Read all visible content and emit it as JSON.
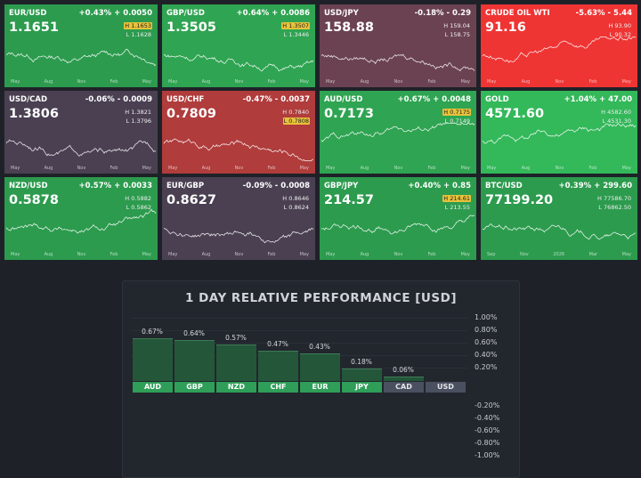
{
  "tiles": [
    {
      "symbol": "EUR/USD",
      "change": "+0.43% + 0.0050",
      "price": "1.1651",
      "high": "H 1.1653",
      "low": "L 1.1628",
      "hl_badge": true,
      "color": "#2c9b4e",
      "trend": 0.06,
      "axis": [
        "May",
        "Aug",
        "Nov",
        "Feb",
        "May"
      ]
    },
    {
      "symbol": "GBP/USD",
      "change": "+0.64% + 0.0086",
      "price": "1.3505",
      "high": "H 1.3507",
      "low": "L 1.3446",
      "hl_badge": true,
      "color": "#2fa452",
      "trend": 0.04,
      "axis": [
        "May",
        "Aug",
        "Nov",
        "Feb",
        "May"
      ]
    },
    {
      "symbol": "USD/JPY",
      "change": "-0.18% - 0.29",
      "price": "158.88",
      "high": "H 159.04",
      "low": "L 158.75",
      "hl_badge": false,
      "color": "#6b4252",
      "trend": 0.35,
      "axis": [
        "May",
        "Aug",
        "Nov",
        "Feb",
        "May"
      ]
    },
    {
      "symbol": "CRUDE OIL WTI",
      "change": "-5.63% - 5.44",
      "price": "91.16",
      "high": "H 93.90",
      "low": "L 90.32",
      "hl_badge": false,
      "color": "#ef3434",
      "trend": 0.55,
      "axis": [
        "May",
        "Aug",
        "Nov",
        "Feb",
        "May"
      ]
    },
    {
      "symbol": "USD/CAD",
      "change": "-0.06% - 0.0009",
      "price": "1.3806",
      "high": "H 1.3821",
      "low": "L 1.3796",
      "hl_badge": false,
      "color": "#4a4052",
      "trend": -0.3,
      "axis": [
        "May",
        "Aug",
        "Nov",
        "Feb",
        "May"
      ]
    },
    {
      "symbol": "USD/CHF",
      "change": "-0.47% - 0.0037",
      "price": "0.7809",
      "high": "H 0.7840",
      "low": "L 0.7808",
      "hl_badge": false,
      "lo_badge": true,
      "color": "#b03c3c",
      "trend": -0.4,
      "axis": [
        "May",
        "Aug",
        "Nov",
        "Feb",
        "May"
      ]
    },
    {
      "symbol": "AUD/USD",
      "change": "+0.67% + 0.0048",
      "price": "0.7173",
      "high": "H 0.7175",
      "low": "L 0.7149",
      "hl_badge": true,
      "color": "#2fa452",
      "trend": 0.45,
      "axis": [
        "May",
        "Aug",
        "Nov",
        "Feb",
        "May"
      ]
    },
    {
      "symbol": "GOLD",
      "change": "+1.04% + 47.00",
      "price": "4571.60",
      "high": "H 4582.60",
      "low": "L 4531.30",
      "hl_badge": false,
      "color": "#33b85a",
      "trend": 0.45,
      "axis": [
        "May",
        "Aug",
        "Nov",
        "Feb",
        "May"
      ]
    },
    {
      "symbol": "NZD/USD",
      "change": "+0.57% + 0.0033",
      "price": "0.5878",
      "high": "H 0.5882",
      "low": "L 0.5862",
      "hl_badge": false,
      "color": "#2c9b4e",
      "trend": -0.05,
      "axis": [
        "May",
        "Aug",
        "Nov",
        "Feb",
        "May"
      ]
    },
    {
      "symbol": "EUR/GBP",
      "change": "-0.09% - 0.0008",
      "price": "0.8627",
      "high": "H 0.8646",
      "low": "L 0.8624",
      "hl_badge": false,
      "color": "#4a4052",
      "trend": 0.2,
      "axis": [
        "May",
        "Aug",
        "Nov",
        "Feb",
        "May"
      ]
    },
    {
      "symbol": "GBP/JPY",
      "change": "+0.40% + 0.85",
      "price": "214.57",
      "high": "H 214.61",
      "low": "L 213.55",
      "hl_badge": true,
      "color": "#2c9b4e",
      "trend": 0.45,
      "axis": [
        "May",
        "Aug",
        "Nov",
        "Feb",
        "May"
      ]
    },
    {
      "symbol": "BTC/USD",
      "change": "+0.39% + 299.60",
      "price": "77199.20",
      "high": "H 77586.70",
      "low": "L 76862.50",
      "hl_badge": false,
      "color": "#2c9b4e",
      "trend": -0.4,
      "axis": [
        "Sep",
        "Nov",
        "2026",
        "Mar",
        "May"
      ]
    }
  ],
  "performance": {
    "title": "1 DAY RELATIVE PERFORMANCE  [USD]",
    "y_pos_labels": [
      "1.00%",
      "0.80%",
      "0.60%",
      "0.40%",
      "0.20%"
    ],
    "y_neg_labels": [
      "-0.20%",
      "-0.40%",
      "-0.60%",
      "-0.80%",
      "-1.00%"
    ],
    "chart_data": {
      "type": "bar",
      "title": "1 DAY RELATIVE PERFORMANCE  [USD]",
      "categories": [
        "AUD",
        "GBP",
        "NZD",
        "CHF",
        "EUR",
        "JPY",
        "CAD",
        "USD"
      ],
      "values": [
        0.67,
        0.64,
        0.57,
        0.47,
        0.43,
        0.18,
        0.06,
        0
      ],
      "value_labels": [
        "0.67%",
        "0.64%",
        "0.57%",
        "0.47%",
        "0.43%",
        "0.18%",
        "0.06%",
        ""
      ],
      "ylim": [
        -1.0,
        1.0
      ]
    }
  }
}
